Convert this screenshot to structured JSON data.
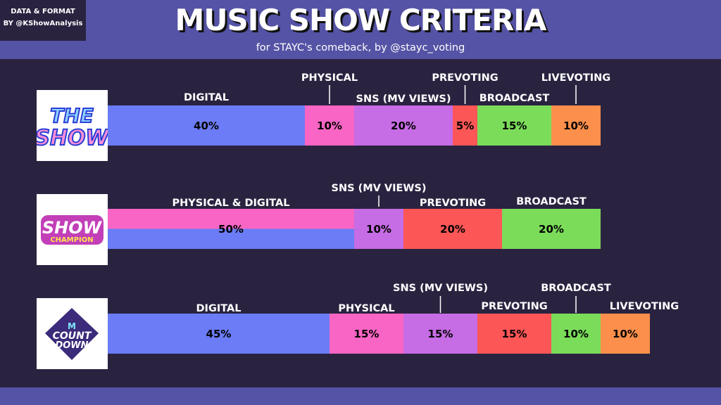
{
  "header": {
    "title": "MUSIC SHOW CRITERIA",
    "subtitle": "for STAYC's comeback, by @stayc_voting",
    "credit_line1": "DATA & FORMAT",
    "credit_line2": "BY @KShowAnalysis"
  },
  "logos": {
    "the_show": [
      "THE",
      "SHOW"
    ],
    "show_champion": {
      "main": "SHOW",
      "sub": "CHAMPION"
    },
    "countdown": {
      "m": "M",
      "main": [
        "COUNT",
        "DOWN"
      ]
    }
  },
  "colors": {
    "digital": "#6b7cf6",
    "physical": "#f865c4",
    "sns": "#c66ce5",
    "prevoting": "#fc5656",
    "broadcast": "#7bdc5a",
    "livevoting": "#fc8f4b"
  },
  "chart_data": [
    {
      "type": "bar",
      "stacked": true,
      "orientation": "horizontal",
      "show": "THE SHOW",
      "segments": [
        {
          "category": "DIGITAL",
          "value": 40,
          "label": "40%",
          "color": "#6b7cf6"
        },
        {
          "category": "PHYSICAL",
          "value": 10,
          "label": "10%",
          "color": "#f865c4"
        },
        {
          "category": "SNS (MV VIEWS)",
          "value": 20,
          "label": "20%",
          "color": "#c66ce5"
        },
        {
          "category": "PREVOTING",
          "value": 5,
          "label": "5%",
          "color": "#fc5656"
        },
        {
          "category": "BROADCAST",
          "value": 15,
          "label": "15%",
          "color": "#7bdc5a"
        },
        {
          "category": "LIVEVOTING",
          "value": 10,
          "label": "10%",
          "color": "#fc8f4b"
        }
      ]
    },
    {
      "type": "bar",
      "stacked": true,
      "orientation": "horizontal",
      "show": "SHOW CHAMPION",
      "segments": [
        {
          "category": "PHYSICAL & DIGITAL",
          "value": 50,
          "label": "50%",
          "color": "#6b7cf6",
          "color_top": "#f865c4"
        },
        {
          "category": "SNS (MV VIEWS)",
          "value": 10,
          "label": "10%",
          "color": "#c66ce5"
        },
        {
          "category": "PREVOTING",
          "value": 20,
          "label": "20%",
          "color": "#fc5656"
        },
        {
          "category": "BROADCAST",
          "value": 20,
          "label": "20%",
          "color": "#7bdc5a"
        }
      ]
    },
    {
      "type": "bar",
      "stacked": true,
      "orientation": "horizontal",
      "show": "M COUNTDOWN",
      "segments": [
        {
          "category": "DIGITAL",
          "value": 45,
          "label": "45%",
          "color": "#6b7cf6"
        },
        {
          "category": "PHYSICAL",
          "value": 15,
          "label": "15%",
          "color": "#f865c4"
        },
        {
          "category": "SNS (MV VIEWS)",
          "value": 15,
          "label": "15%",
          "color": "#c66ce5"
        },
        {
          "category": "PREVOTING",
          "value": 15,
          "label": "15%",
          "color": "#fc5656"
        },
        {
          "category": "BROADCAST",
          "value": 10,
          "label": "10%",
          "color": "#7bdc5a"
        },
        {
          "category": "LIVEVOTING",
          "value": 10,
          "label": "10%",
          "color": "#fc8f4b"
        }
      ]
    }
  ]
}
